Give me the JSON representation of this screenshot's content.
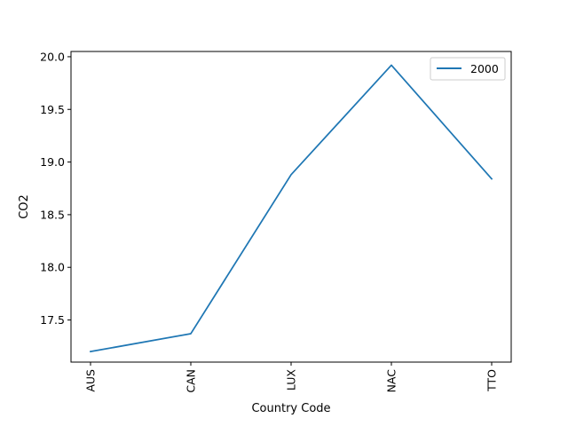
{
  "chart_data": {
    "type": "line",
    "categories": [
      "AUS",
      "CAN",
      "LUX",
      "NAC",
      "TTO"
    ],
    "series": [
      {
        "name": "2000",
        "values": [
          17.2,
          17.37,
          18.88,
          19.92,
          18.84
        ],
        "color": "#1f77b4"
      }
    ],
    "xlabel": "Country Code",
    "ylabel": "CO2",
    "ylim": [
      17.1,
      20.05
    ],
    "yticks": [
      17.5,
      18.0,
      18.5,
      19.0,
      19.5,
      20.0
    ],
    "ytick_labels": [
      "17.5",
      "18.0",
      "18.5",
      "19.0",
      "19.5",
      "20.0"
    ],
    "xtick_rotation": "vertical",
    "grid": false,
    "legend": "top-right"
  }
}
